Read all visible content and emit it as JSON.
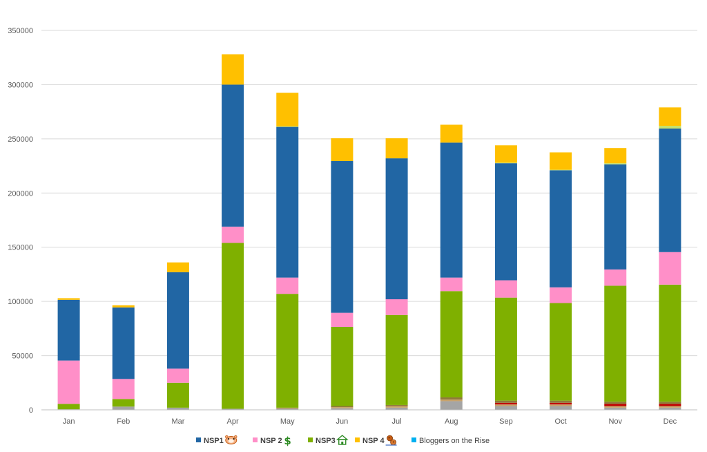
{
  "chart_data": {
    "type": "bar",
    "stacked": true,
    "title": "",
    "xlabel": "",
    "ylabel": "",
    "ylim": [
      0,
      350000
    ],
    "y_ticks": [
      0,
      50000,
      100000,
      150000,
      200000,
      250000,
      300000,
      350000
    ],
    "y_tick_labels": [
      "0",
      "50000",
      "100000",
      "150000",
      "200000",
      "250000",
      "300000",
      "350000"
    ],
    "grid": true,
    "legend_position": "bottom",
    "categories": [
      "Jan",
      "Feb",
      "Mar",
      "Apr",
      "May",
      "Jun",
      "Jul",
      "Aug",
      "Sep",
      "Oct",
      "Nov",
      "Dec"
    ],
    "series": [
      {
        "key": "gray",
        "color": "#a5a5a5",
        "values": [
          500,
          3000,
          2000,
          1000,
          1000,
          1500,
          2000,
          8000,
          3500,
          3500,
          2000,
          2000
        ]
      },
      {
        "key": "tan",
        "color": "#c9a36b",
        "values": [
          0,
          0,
          0,
          0,
          500,
          1000,
          1500,
          1500,
          1500,
          1500,
          1500,
          1500
        ]
      },
      {
        "key": "red",
        "color": "#c00000",
        "values": [
          0,
          0,
          0,
          0,
          0,
          0,
          0,
          0,
          1500,
          1500,
          2000,
          2000
        ]
      },
      {
        "key": "olive",
        "color": "#8f7a3a",
        "values": [
          0,
          0,
          0,
          0,
          500,
          1000,
          1000,
          2000,
          2000,
          2000,
          2000,
          2000
        ]
      },
      {
        "key": "nsp3",
        "name": "NSP3",
        "color": "#7fb000",
        "values": [
          5000,
          7000,
          23000,
          153000,
          105000,
          73000,
          83000,
          98000,
          95000,
          90000,
          107000,
          108000
        ]
      },
      {
        "key": "nsp2",
        "name": "NSP 2",
        "color": "#ff8fc8",
        "values": [
          40000,
          18500,
          13000,
          15000,
          15000,
          13000,
          14500,
          12500,
          16000,
          14500,
          15000,
          30000
        ]
      },
      {
        "key": "nsp1",
        "name": "NSP1",
        "color": "#2166a4",
        "values": [
          56000,
          66000,
          89000,
          131000,
          139000,
          140000,
          130000,
          124500,
          108000,
          108000,
          97000,
          114000
        ]
      },
      {
        "key": "bloggers",
        "name": "Bloggers on the Rise",
        "color": "#00b0f0",
        "values": [
          0,
          0,
          0,
          0,
          0,
          0,
          0,
          0,
          0,
          0,
          0,
          0
        ]
      },
      {
        "key": "lightgreen",
        "color": "#c6e26b",
        "values": [
          0,
          0,
          0,
          0,
          500,
          0,
          0,
          0,
          500,
          500,
          1000,
          2500
        ]
      },
      {
        "key": "nsp4",
        "name": "NSP 4",
        "color": "#ffc000",
        "values": [
          1500,
          2000,
          9000,
          28000,
          31000,
          21000,
          18500,
          16500,
          16000,
          16000,
          14000,
          17000
        ]
      }
    ],
    "legend": [
      {
        "series": "nsp1",
        "label": "NSP1",
        "bold": true,
        "icon": "hamster-icon"
      },
      {
        "series": "nsp2",
        "label": "NSP 2",
        "bold": true,
        "icon": "dollar-icon"
      },
      {
        "series": "nsp3",
        "label": "NSP3",
        "bold": true,
        "icon": "house-icon"
      },
      {
        "series": "nsp4",
        "label": "NSP 4",
        "bold": true,
        "icon": "cookie-icon"
      },
      {
        "series": "bloggers",
        "label": "Bloggers on the Rise",
        "bold": false,
        "icon": ""
      }
    ]
  }
}
